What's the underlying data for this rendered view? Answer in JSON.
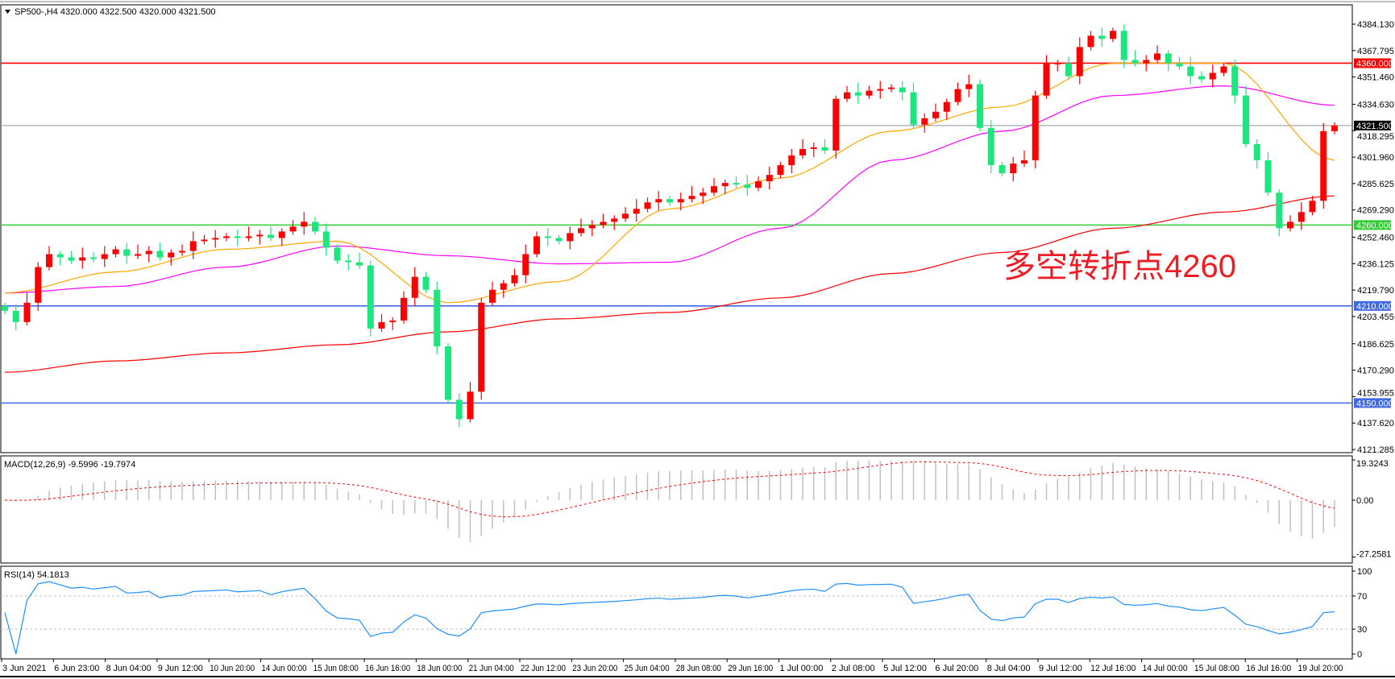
{
  "header": {
    "symbol_info": "SP500-,H4  4320.000 4322.500 4320.000 4321.500"
  },
  "macd_label": "MACD(12,26,9) -9.5996 -19.7974",
  "rsi_label": "RSI(14) 54.1813",
  "annotation": "多空转折点4260",
  "colors": {
    "bull": "#ff0000",
    "bear": "#1ee67f",
    "ma_fast": "#ffa500",
    "ma_mid": "#ff00ff",
    "ma_slow": "#ff0000",
    "level_red": "#ff0000",
    "level_green": "#32cd32",
    "level_blue": "#4169e1",
    "macd_hist": "#c0c0c0",
    "macd_signal": "#ff0000",
    "rsi": "#1e90ff"
  },
  "chart_data": {
    "type": "candlestick",
    "price_ticks": [
      "4384.130",
      "4367.795",
      "4351.460",
      "4334.630",
      "4318.295",
      "4301.960",
      "4285.625",
      "4269.290",
      "4252.460",
      "4236.125",
      "4219.790",
      "4203.455",
      "4186.625",
      "4170.290",
      "4153.955",
      "4137.620",
      "4121.285"
    ],
    "levels": [
      {
        "value": 4360,
        "label": "4360.000",
        "color": "#ff0000"
      },
      {
        "value": 4260,
        "label": "4260.000",
        "color": "#32cd32"
      },
      {
        "value": 4210,
        "label": "4210.000",
        "color": "#4169e1"
      },
      {
        "value": 4150,
        "label": "4150.000",
        "color": "#4169e1"
      }
    ],
    "current_price": {
      "value": 4321.5,
      "label": "4321.500"
    },
    "close": [
      4207,
      4200,
      4212,
      4234,
      4242,
      4240,
      4238,
      4240,
      4239,
      4242,
      4245,
      4241,
      4242,
      4244,
      4240,
      4243,
      4244,
      4250,
      4251,
      4252,
      4253,
      4252,
      4253,
      4254,
      4252,
      4256,
      4259,
      4262,
      4256,
      4246,
      4238,
      4237,
      4235,
      4196,
      4200,
      4201,
      4215,
      4228,
      4220,
      4185,
      4152,
      4140,
      4157,
      4212,
      4220,
      4224,
      4229,
      4242,
      4253,
      4252,
      4250,
      4255,
      4258,
      4260,
      4262,
      4264,
      4267,
      4270,
      4274,
      4276,
      4274,
      4276,
      4278,
      4280,
      4284,
      4286,
      4285,
      4283,
      4287,
      4291,
      4297,
      4303,
      4307,
      4308,
      4306,
      4338,
      4342,
      4340,
      4343,
      4344,
      4345,
      4342,
      4322,
      4326,
      4330,
      4336,
      4344,
      4347,
      4320,
      4297,
      4292,
      4298,
      4300,
      4340,
      4360,
      4360,
      4352,
      4370,
      4377,
      4375,
      4380,
      4362,
      4360,
      4362,
      4366,
      4360,
      4358,
      4352,
      4350,
      4354,
      4358,
      4340,
      4310,
      4300,
      4280,
      4258,
      4262,
      4268,
      4275,
      4318,
      4321.5
    ],
    "ma_fast_every10": [
      4218,
      4231,
      4245,
      4250,
      4212,
      4225,
      4270,
      4289,
      4318,
      4333,
      4360,
      4360,
      4300
    ],
    "ma_mid_every10": [
      4218,
      4222,
      4234,
      4247,
      4241,
      4236,
      4237,
      4258,
      4300,
      4318,
      4340,
      4346,
      4334
    ],
    "ma_slow_every10": [
      4169,
      4176,
      4181,
      4186,
      4194,
      4202,
      4206,
      4215,
      4230,
      4243,
      4258,
      4268,
      4278
    ],
    "macd_ticks": [
      "19.3243",
      "0.00",
      "-27.2581"
    ],
    "rsi_ticks": [
      "100",
      "70",
      "30",
      "0"
    ],
    "rsi_levels": [
      70,
      30
    ],
    "time_labels": [
      "3 Jun 2021",
      "6 Jun 23:00",
      "8 Jun 04:00",
      "9 Jun 12:00",
      "10 Jun 20:00",
      "14 Jun 00:00",
      "15 Jun 08:00",
      "16 Jun 16:00",
      "18 Jun 00:00",
      "21 Jun 04:00",
      "22 Jun 12:00",
      "23 Jun 20:00",
      "25 Jun 04:00",
      "28 Jun 08:00",
      "29 Jun 16:00",
      "1 Jul 00:00",
      "2 Jul 08:00",
      "5 Jul 12:00",
      "6 Jul 20:00",
      "8 Jul 04:00",
      "9 Jul 12:00",
      "12 Jul 16:00",
      "14 Jul 00:00",
      "15 Jul 08:00",
      "16 Jul 16:00",
      "19 Jul 20:00"
    ]
  }
}
